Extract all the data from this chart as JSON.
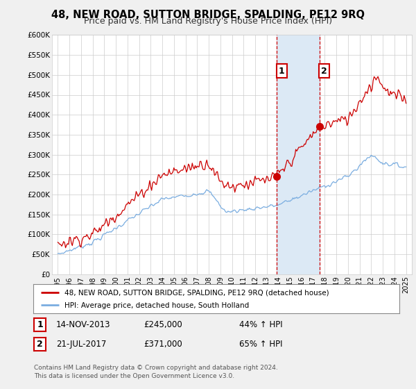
{
  "title": "48, NEW ROAD, SUTTON BRIDGE, SPALDING, PE12 9RQ",
  "subtitle": "Price paid vs. HM Land Registry's House Price Index (HPI)",
  "legend_line1": "48, NEW ROAD, SUTTON BRIDGE, SPALDING, PE12 9RQ (detached house)",
  "legend_line2": "HPI: Average price, detached house, South Holland",
  "footnote": "Contains HM Land Registry data © Crown copyright and database right 2024.\nThis data is licensed under the Open Government Licence v3.0.",
  "table_rows": [
    {
      "num": "1",
      "date": "14-NOV-2013",
      "price": "£245,000",
      "pct": "44% ↑ HPI"
    },
    {
      "num": "2",
      "date": "21-JUL-2017",
      "price": "£371,000",
      "pct": "65% ↑ HPI"
    }
  ],
  "marker1_x": 2013.87,
  "marker1_y": 245000,
  "marker2_x": 2017.55,
  "marker2_y": 371000,
  "vline1_x": 2013.87,
  "vline2_x": 2017.55,
  "shade_xmin": 2013.87,
  "shade_xmax": 2017.55,
  "ylim": [
    0,
    600000
  ],
  "xlim_min": 1994.5,
  "xlim_max": 2025.5,
  "yticks": [
    0,
    50000,
    100000,
    150000,
    200000,
    250000,
    300000,
    350000,
    400000,
    450000,
    500000,
    550000,
    600000
  ],
  "ytick_labels": [
    "£0",
    "£50K",
    "£100K",
    "£150K",
    "£200K",
    "£250K",
    "£300K",
    "£350K",
    "£400K",
    "£450K",
    "£500K",
    "£550K",
    "£600K"
  ],
  "xticks": [
    1995,
    1996,
    1997,
    1998,
    1999,
    2000,
    2001,
    2002,
    2003,
    2004,
    2005,
    2006,
    2007,
    2008,
    2009,
    2010,
    2011,
    2012,
    2013,
    2014,
    2015,
    2016,
    2017,
    2018,
    2019,
    2020,
    2021,
    2022,
    2023,
    2024,
    2025
  ],
  "hpi_color": "#7aade0",
  "price_color": "#cc0000",
  "shade_color": "#dce9f5",
  "vline_color": "#cc0000",
  "background_color": "#f0f0f0",
  "plot_bg_color": "#ffffff",
  "grid_color": "#cccccc"
}
